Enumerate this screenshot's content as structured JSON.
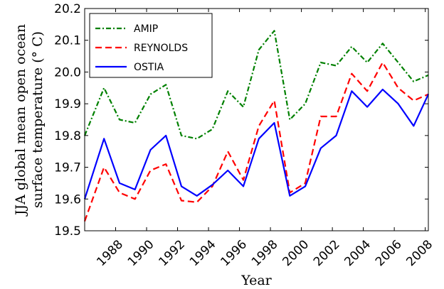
{
  "chart_data": {
    "type": "line",
    "title": "",
    "xlabel": "Year",
    "ylabel": [
      "JJA global mean open ocean",
      "surface temperature (° C)"
    ],
    "xlim": [
      1986.0,
      2008.2
    ],
    "ylim": [
      19.5,
      20.2
    ],
    "x_ticks": [
      1988,
      1990,
      1992,
      1994,
      1996,
      1998,
      2000,
      2002,
      2004,
      2006,
      2008
    ],
    "y_ticks": [
      19.5,
      19.6,
      19.7,
      19.8,
      19.9,
      20.0,
      20.1,
      20.2
    ],
    "grid": false,
    "legend_position": "top-left",
    "x": [
      1986.0,
      1987.25,
      1988.25,
      1989.25,
      1990.25,
      1991.25,
      1992.25,
      1993.25,
      1994.25,
      1995.25,
      1996.25,
      1997.25,
      1998.25,
      1999.25,
      2000.25,
      2001.25,
      2002.25,
      2003.25,
      2004.25,
      2005.25,
      2006.25,
      2007.25,
      2008.2
    ],
    "series": [
      {
        "name": "AMIP",
        "color": "#008000",
        "dash": "dashdot",
        "values": [
          19.8,
          19.95,
          19.85,
          19.84,
          19.93,
          19.96,
          19.8,
          19.79,
          19.82,
          19.94,
          19.89,
          20.07,
          20.13,
          19.85,
          19.9,
          20.03,
          20.02,
          20.08,
          20.03,
          20.09,
          20.03,
          19.97,
          19.99
        ]
      },
      {
        "name": "REYNOLDS",
        "color": "#ff0000",
        "dash": "dashed",
        "values": [
          19.53,
          19.7,
          19.62,
          19.6,
          19.69,
          19.71,
          19.595,
          19.59,
          19.64,
          19.75,
          19.66,
          19.83,
          19.91,
          19.62,
          19.65,
          19.86,
          19.86,
          19.995,
          19.94,
          20.03,
          19.95,
          19.91,
          19.93
        ]
      },
      {
        "name": "OSTIA",
        "color": "#0000ff",
        "dash": "solid",
        "values": [
          19.6,
          19.79,
          19.65,
          19.63,
          19.755,
          19.8,
          19.64,
          19.61,
          19.645,
          19.69,
          19.64,
          19.79,
          19.84,
          19.61,
          19.64,
          19.76,
          19.8,
          19.94,
          19.89,
          19.945,
          19.9,
          19.83,
          19.93
        ]
      }
    ]
  }
}
